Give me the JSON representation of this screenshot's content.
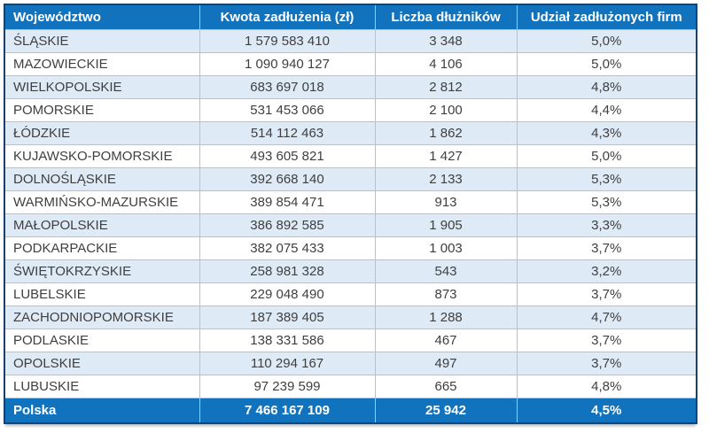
{
  "chart_data": {
    "type": "table",
    "columns": [
      "Województwo",
      "Kwota zadłużenia (zł)",
      "Liczba dłużników",
      "Udział zadłużonych firm"
    ],
    "rows": [
      [
        "ŚLĄSKIE",
        "1 579 583 410",
        "3 348",
        "5,0%"
      ],
      [
        "MAZOWIECKIE",
        "1 090 940 127",
        "4 106",
        "5,0%"
      ],
      [
        "WIELKOPOLSKIE",
        "683 697 018",
        "2 812",
        "4,8%"
      ],
      [
        "POMORSKIE",
        "531 453 066",
        "2 100",
        "4,4%"
      ],
      [
        "ŁÓDZKIE",
        "514 112 463",
        "1 862",
        "4,3%"
      ],
      [
        "KUJAWSKO-POMORSKIE",
        "493 605 821",
        "1 427",
        "5,0%"
      ],
      [
        "DOLNOŚLĄSKIE",
        "392 668 140",
        "2 133",
        "5,3%"
      ],
      [
        "WARMIŃSKO-MAZURSKIE",
        "389 854 471",
        "913",
        "5,3%"
      ],
      [
        "MAŁOPOLSKIE",
        "386 892 585",
        "1 905",
        "3,3%"
      ],
      [
        "PODKARPACKIE",
        "382 075 433",
        "1 003",
        "3,7%"
      ],
      [
        "ŚWIĘTOKRZYSKIE",
        "258 981 328",
        "543",
        "3,2%"
      ],
      [
        "LUBELSKIE",
        "229 048 490",
        "873",
        "3,7%"
      ],
      [
        "ZACHODNIOPOMORSKIE",
        "187 389 405",
        "1 288",
        "4,7%"
      ],
      [
        "PODLASKIE",
        "138 331 586",
        "467",
        "3,7%"
      ],
      [
        "OPOLSKIE",
        "110 294 167",
        "497",
        "3,7%"
      ],
      [
        "LUBUSKIE",
        "97 239 599",
        "665",
        "4,8%"
      ]
    ],
    "footer": [
      "Polska",
      "7 466 167 109",
      "25 942",
      "4,5%"
    ]
  },
  "colors": {
    "header_bg": "#1173BE",
    "header_text": "#FFFFFF",
    "row_alt_bg": "#DEEAF6",
    "row_bg": "#FFFFFF",
    "outer_border": "#1B4169",
    "grid_border": "#A5C6E8",
    "body_text": "#3F3F3F"
  }
}
